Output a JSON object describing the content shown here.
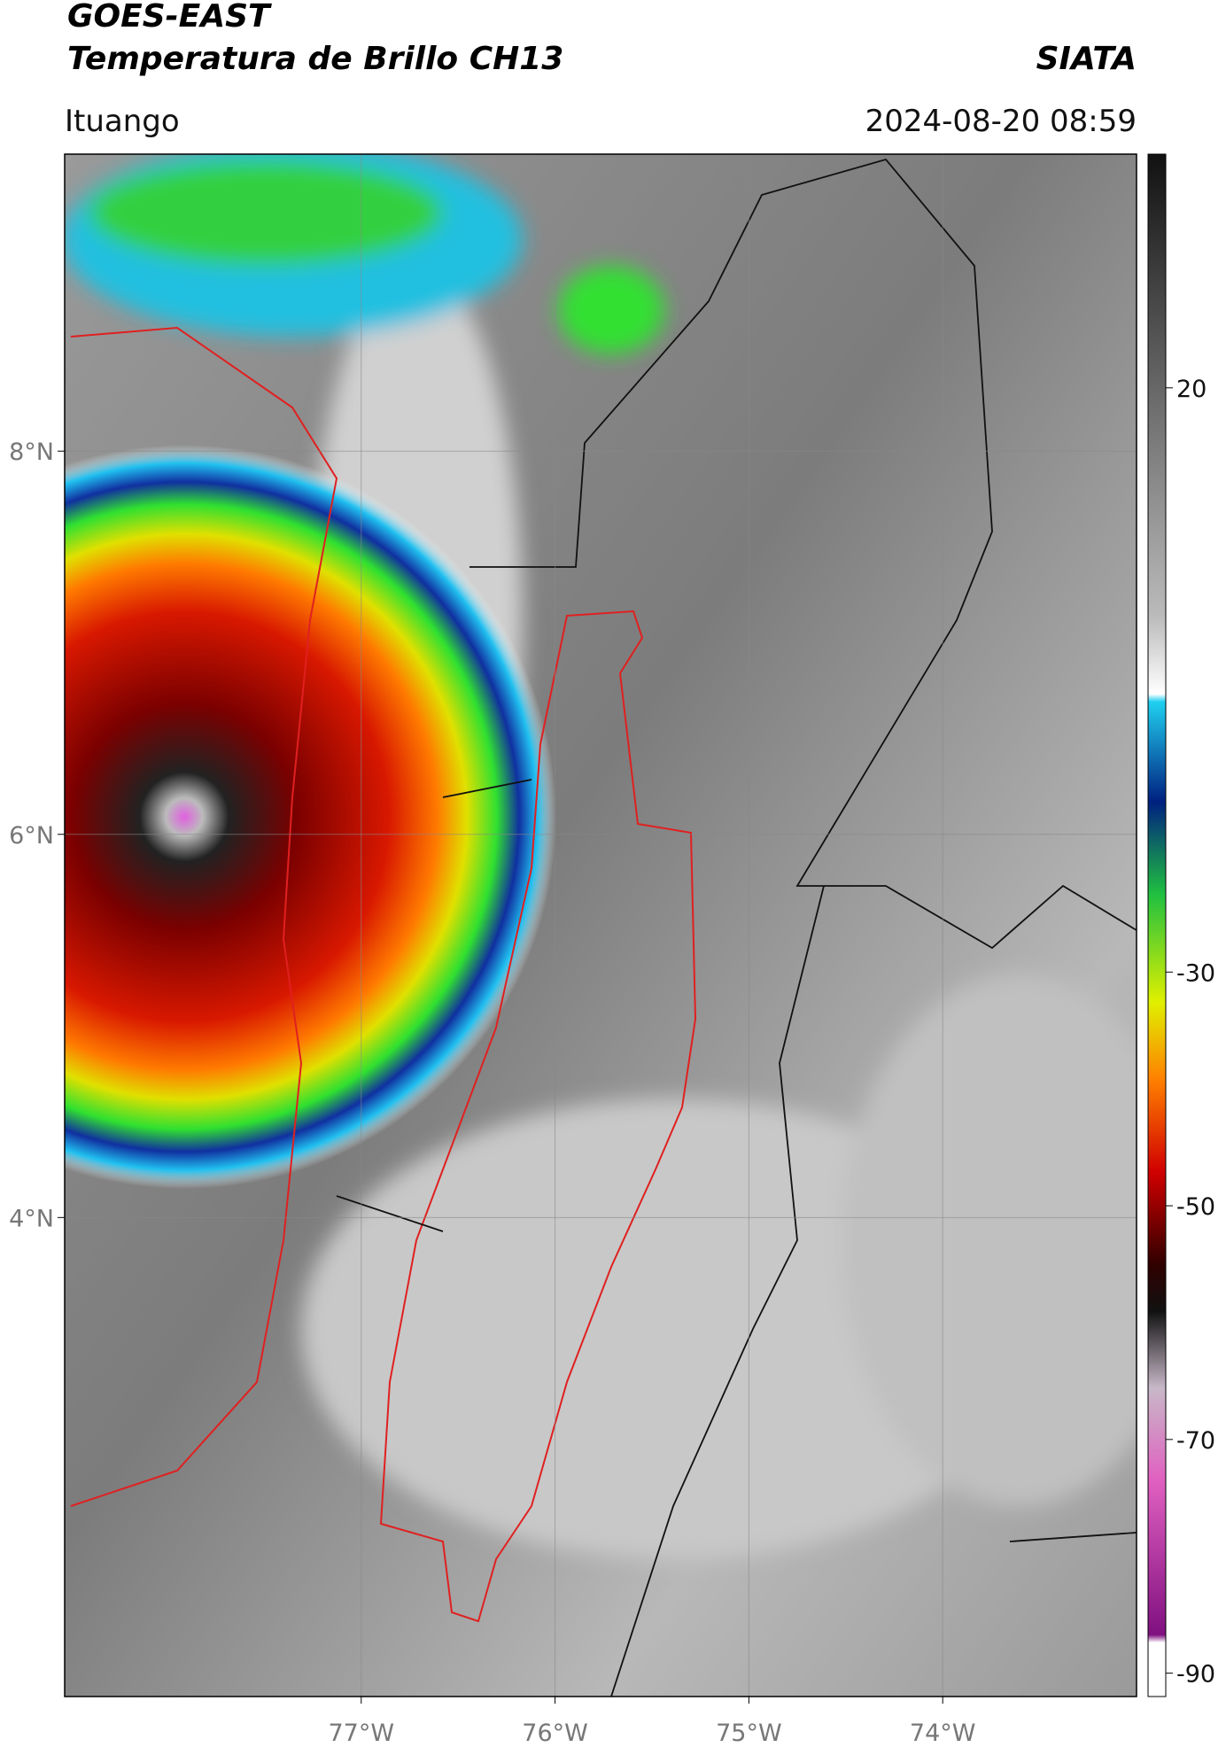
{
  "header": {
    "title": "GOES-EAST",
    "subtitle": "Temperatura de Brillo CH13",
    "source": "SIATA",
    "location": "Ituango",
    "datetime": "2024-08-20 08:59"
  },
  "map": {
    "lonlim": [
      -78.53,
      -73.0
    ],
    "latlim": [
      1.5,
      9.55
    ],
    "lat_ticks": [
      {
        "value": 8,
        "label": "8°N"
      },
      {
        "value": 6,
        "label": "6°N"
      },
      {
        "value": 4,
        "label": "4°N"
      }
    ],
    "lon_ticks": [
      {
        "value": -77,
        "label": "77°W"
      },
      {
        "value": -76,
        "label": "76°W"
      },
      {
        "value": -75,
        "label": "75°W"
      },
      {
        "value": -74,
        "label": "74°W"
      }
    ],
    "grid": true
  },
  "colorbar": {
    "lim": [
      -92,
      40
    ],
    "ticks": [
      20,
      -30,
      -50,
      -70,
      -90
    ]
  }
}
